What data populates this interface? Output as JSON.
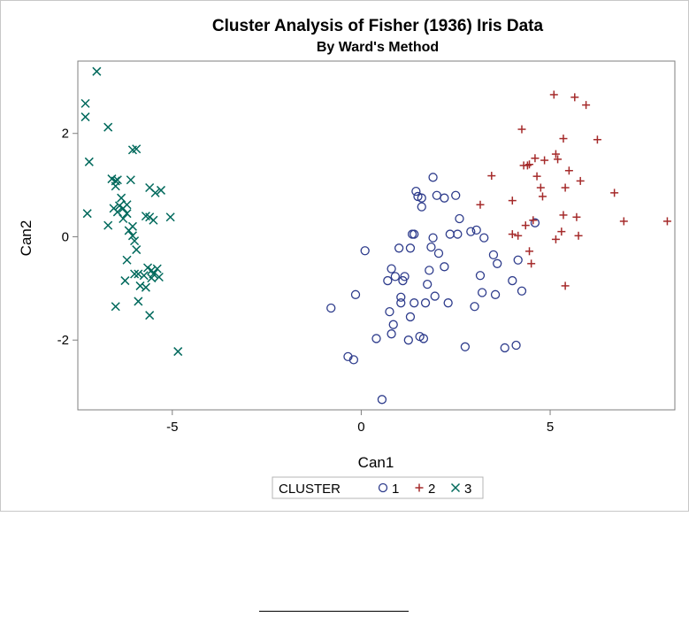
{
  "chart_data": {
    "type": "scatter",
    "title": "Cluster Analysis of Fisher (1936) Iris Data",
    "subtitle": "By Ward's Method",
    "xlabel": "Can1",
    "ylabel": "Can2",
    "xlim": [
      -7.5,
      8.3
    ],
    "ylim": [
      -3.35,
      3.4
    ],
    "xticks": [
      -5,
      0,
      5
    ],
    "yticks": [
      -2,
      0,
      2
    ],
    "grid": false,
    "legend": {
      "title": "CLUSTER",
      "placement": "bottom-center"
    },
    "series": [
      {
        "name": "1",
        "marker": "circle",
        "color": "#2e3c8c",
        "points": [
          [
            -0.8,
            -1.38
          ],
          [
            -0.35,
            -2.32
          ],
          [
            -0.2,
            -2.38
          ],
          [
            -0.15,
            -1.12
          ],
          [
            0.1,
            -0.27
          ],
          [
            0.4,
            -1.97
          ],
          [
            0.55,
            -3.15
          ],
          [
            0.7,
            -0.85
          ],
          [
            0.75,
            -1.45
          ],
          [
            0.8,
            -1.88
          ],
          [
            0.8,
            -0.62
          ],
          [
            0.85,
            -1.7
          ],
          [
            0.9,
            -0.77
          ],
          [
            1.0,
            -0.22
          ],
          [
            1.05,
            -1.28
          ],
          [
            1.05,
            -1.17
          ],
          [
            1.1,
            -0.85
          ],
          [
            1.15,
            -0.77
          ],
          [
            1.25,
            -2.0
          ],
          [
            1.3,
            -1.55
          ],
          [
            1.3,
            -0.22
          ],
          [
            1.35,
            0.05
          ],
          [
            1.4,
            0.05
          ],
          [
            1.4,
            -1.28
          ],
          [
            1.45,
            0.88
          ],
          [
            1.5,
            0.78
          ],
          [
            1.55,
            -1.93
          ],
          [
            1.6,
            0.58
          ],
          [
            1.6,
            0.75
          ],
          [
            1.65,
            -1.97
          ],
          [
            1.7,
            -1.28
          ],
          [
            1.75,
            -0.92
          ],
          [
            1.8,
            -0.65
          ],
          [
            1.85,
            -0.2
          ],
          [
            1.9,
            -0.02
          ],
          [
            1.9,
            1.15
          ],
          [
            1.95,
            -1.15
          ],
          [
            2.0,
            0.8
          ],
          [
            2.05,
            -0.32
          ],
          [
            2.2,
            -0.58
          ],
          [
            2.2,
            0.75
          ],
          [
            2.3,
            -1.28
          ],
          [
            2.35,
            0.05
          ],
          [
            2.5,
            0.8
          ],
          [
            2.55,
            0.05
          ],
          [
            2.6,
            0.35
          ],
          [
            2.75,
            -2.13
          ],
          [
            2.9,
            0.1
          ],
          [
            3.0,
            -1.35
          ],
          [
            3.05,
            0.13
          ],
          [
            3.15,
            -0.75
          ],
          [
            3.2,
            -1.08
          ],
          [
            3.25,
            -0.02
          ],
          [
            3.5,
            -0.35
          ],
          [
            3.55,
            -1.12
          ],
          [
            3.6,
            -0.52
          ],
          [
            3.8,
            -2.15
          ],
          [
            4.0,
            -0.85
          ],
          [
            4.1,
            -2.1
          ],
          [
            4.15,
            -0.45
          ],
          [
            4.25,
            -1.05
          ],
          [
            4.6,
            0.27
          ]
        ]
      },
      {
        "name": "2",
        "marker": "plus",
        "color": "#a52a2a",
        "points": [
          [
            3.15,
            0.62
          ],
          [
            3.45,
            1.18
          ],
          [
            4.0,
            0.7
          ],
          [
            4.0,
            0.05
          ],
          [
            4.15,
            0.02
          ],
          [
            4.25,
            2.08
          ],
          [
            4.3,
            1.38
          ],
          [
            4.35,
            0.22
          ],
          [
            4.4,
            1.38
          ],
          [
            4.45,
            -0.28
          ],
          [
            4.45,
            1.4
          ],
          [
            4.5,
            -0.52
          ],
          [
            4.55,
            0.32
          ],
          [
            4.6,
            1.52
          ],
          [
            4.65,
            1.17
          ],
          [
            4.75,
            0.95
          ],
          [
            4.8,
            0.78
          ],
          [
            4.85,
            1.48
          ],
          [
            5.1,
            2.75
          ],
          [
            5.15,
            -0.05
          ],
          [
            5.15,
            1.6
          ],
          [
            5.2,
            1.5
          ],
          [
            5.3,
            0.1
          ],
          [
            5.35,
            1.9
          ],
          [
            5.35,
            0.42
          ],
          [
            5.4,
            0.95
          ],
          [
            5.4,
            -0.95
          ],
          [
            5.5,
            1.28
          ],
          [
            5.65,
            2.7
          ],
          [
            5.7,
            0.38
          ],
          [
            5.75,
            0.02
          ],
          [
            5.8,
            1.08
          ],
          [
            5.95,
            2.55
          ],
          [
            6.25,
            1.88
          ],
          [
            6.7,
            0.85
          ],
          [
            6.95,
            0.3
          ],
          [
            8.1,
            0.3
          ]
        ]
      },
      {
        "name": "3",
        "marker": "x",
        "color": "#00695c",
        "points": [
          [
            -7.3,
            2.58
          ],
          [
            -7.3,
            2.32
          ],
          [
            -7.25,
            0.45
          ],
          [
            -7.2,
            1.45
          ],
          [
            -7.0,
            3.2
          ],
          [
            -6.7,
            2.12
          ],
          [
            -6.7,
            0.22
          ],
          [
            -6.6,
            1.12
          ],
          [
            -6.55,
            0.55
          ],
          [
            -6.5,
            -1.35
          ],
          [
            -6.5,
            1.08
          ],
          [
            -6.5,
            0.98
          ],
          [
            -6.45,
            0.48
          ],
          [
            -6.45,
            1.1
          ],
          [
            -6.4,
            0.6
          ],
          [
            -6.35,
            0.75
          ],
          [
            -6.3,
            0.35
          ],
          [
            -6.3,
            0.55
          ],
          [
            -6.25,
            -0.85
          ],
          [
            -6.2,
            0.62
          ],
          [
            -6.2,
            0.45
          ],
          [
            -6.2,
            -0.45
          ],
          [
            -6.15,
            0.12
          ],
          [
            -6.1,
            1.1
          ],
          [
            -6.05,
            1.68
          ],
          [
            -6.05,
            0.02
          ],
          [
            -6.05,
            0.2
          ],
          [
            -6.0,
            -0.72
          ],
          [
            -6.0,
            -0.08
          ],
          [
            -5.95,
            1.7
          ],
          [
            -5.95,
            -0.25
          ],
          [
            -5.9,
            -1.25
          ],
          [
            -5.9,
            -0.72
          ],
          [
            -5.85,
            -0.95
          ],
          [
            -5.75,
            -0.75
          ],
          [
            -5.7,
            -0.98
          ],
          [
            -5.7,
            0.4
          ],
          [
            -5.65,
            -0.6
          ],
          [
            -5.6,
            -1.52
          ],
          [
            -5.6,
            0.95
          ],
          [
            -5.6,
            0.38
          ],
          [
            -5.55,
            -0.8
          ],
          [
            -5.55,
            -0.65
          ],
          [
            -5.5,
            -0.72
          ],
          [
            -5.5,
            0.32
          ],
          [
            -5.45,
            0.85
          ],
          [
            -5.4,
            -0.62
          ],
          [
            -5.35,
            -0.78
          ],
          [
            -5.3,
            0.9
          ],
          [
            -5.05,
            0.38
          ],
          [
            -4.85,
            -2.22
          ]
        ]
      }
    ]
  }
}
